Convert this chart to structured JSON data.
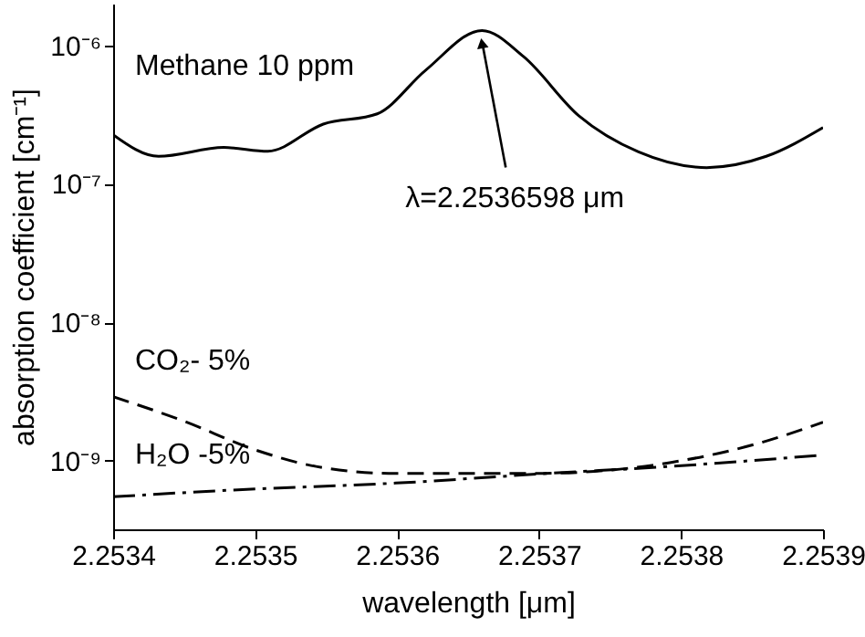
{
  "chart_data": {
    "type": "line",
    "xlabel": "wavelength [μm]",
    "ylabel": "absorption coefficient [cm⁻¹]",
    "log": "y",
    "xlim": [
      2.2534,
      2.2539
    ],
    "xticks": [
      2.2534,
      2.2535,
      2.2536,
      2.2537,
      2.2538,
      2.2539
    ],
    "ylim": [
      3.2e-10,
      2e-06
    ],
    "yticks": [
      {
        "value": 1e-09,
        "label": "10⁻⁹"
      },
      {
        "value": 1e-08,
        "label": "10⁻⁸"
      },
      {
        "value": 1e-07,
        "label": "10⁻⁷"
      },
      {
        "value": 1e-06,
        "label": "10⁻⁶"
      }
    ],
    "grid": false,
    "marker": "none",
    "annotations": [
      {
        "text": "λ=2.2536598 μm",
        "x": 2.2536598,
        "y": 1.28e-06
      }
    ],
    "series": [
      {
        "name": "Methane 10 ppm",
        "color": "#000000",
        "line_style": "solid",
        "x": [
          2.2534,
          2.253432,
          2.253478,
          2.253509,
          2.253548,
          2.253586,
          2.25362,
          2.2536598,
          2.253689,
          2.253728,
          2.25377,
          2.253818,
          2.25386,
          2.2539
        ],
        "values": [
          2.26e-07,
          1.58e-07,
          1.83e-07,
          1.72e-07,
          2.7e-07,
          3.2e-07,
          6.6e-07,
          1.28e-06,
          8.3e-07,
          3.1e-07,
          1.7e-07,
          1.31e-07,
          1.58e-07,
          2.55e-07
        ]
      },
      {
        "name": "CO₂- 5%",
        "color": "#000000",
        "line_style": "dashed",
        "x": [
          2.2534,
          2.253449,
          2.2535,
          2.253543,
          2.253599,
          2.253697,
          2.253792,
          2.253856,
          2.2539
        ],
        "values": [
          2.9e-09,
          1.95e-09,
          1.2e-09,
          9.1e-10,
          8.1e-10,
          8.1e-10,
          9.7e-10,
          1.35e-09,
          1.9e-09
        ]
      },
      {
        "name": "H₂O -5%",
        "color": "#000000",
        "line_style": "dashdot",
        "x": [
          2.2534,
          2.253491,
          2.253599,
          2.253706,
          2.253792,
          2.2539
        ],
        "values": [
          5.5e-10,
          6.2e-10,
          6.9e-10,
          8.1e-10,
          9.1e-10,
          1.1e-09
        ]
      }
    ]
  }
}
